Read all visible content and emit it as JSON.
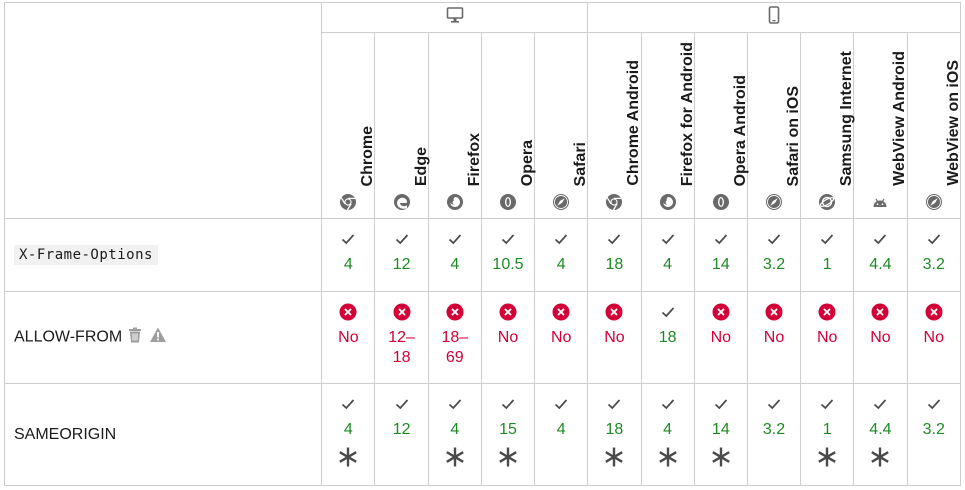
{
  "platforms": {
    "desktop": {
      "icon": "desktop-icon"
    },
    "mobile": {
      "icon": "mobile-icon"
    }
  },
  "browsers": [
    {
      "name": "Chrome",
      "icon": "chrome-icon"
    },
    {
      "name": "Edge",
      "icon": "edge-icon"
    },
    {
      "name": "Firefox",
      "icon": "firefox-icon"
    },
    {
      "name": "Opera",
      "icon": "opera-icon"
    },
    {
      "name": "Safari",
      "icon": "safari-icon"
    },
    {
      "name": "Chrome Android",
      "icon": "chrome-icon"
    },
    {
      "name": "Firefox for Android",
      "icon": "firefox-icon"
    },
    {
      "name": "Opera Android",
      "icon": "opera-icon"
    },
    {
      "name": "Safari on iOS",
      "icon": "safari-icon"
    },
    {
      "name": "Samsung Internet",
      "icon": "samsung-internet-icon"
    },
    {
      "name": "WebView Android",
      "icon": "android-icon"
    },
    {
      "name": "WebView on iOS",
      "icon": "safari-icon"
    }
  ],
  "rows": [
    {
      "feature": "X-Frame-Options",
      "cells": [
        {
          "support": "yes",
          "version": "4"
        },
        {
          "support": "yes",
          "version": "12"
        },
        {
          "support": "yes",
          "version": "4"
        },
        {
          "support": "yes",
          "version": "10.5"
        },
        {
          "support": "yes",
          "version": "4"
        },
        {
          "support": "yes",
          "version": "18"
        },
        {
          "support": "yes",
          "version": "4"
        },
        {
          "support": "yes",
          "version": "14"
        },
        {
          "support": "yes",
          "version": "3.2"
        },
        {
          "support": "yes",
          "version": "1"
        },
        {
          "support": "yes",
          "version": "4.4"
        },
        {
          "support": "yes",
          "version": "3.2"
        }
      ]
    },
    {
      "feature": "ALLOW-FROM",
      "feature_icons": [
        "trash-icon",
        "warning-icon"
      ],
      "cells": [
        {
          "support": "no",
          "version": "No"
        },
        {
          "support": "no",
          "version": "12–\n18"
        },
        {
          "support": "no",
          "version": "18–\n69"
        },
        {
          "support": "no",
          "version": "No"
        },
        {
          "support": "no",
          "version": "No"
        },
        {
          "support": "no",
          "version": "No"
        },
        {
          "support": "yes",
          "version": "18"
        },
        {
          "support": "no",
          "version": "No"
        },
        {
          "support": "no",
          "version": "No"
        },
        {
          "support": "no",
          "version": "No"
        },
        {
          "support": "no",
          "version": "No"
        },
        {
          "support": "no",
          "version": "No"
        }
      ]
    },
    {
      "feature": "SAMEORIGIN",
      "cells": [
        {
          "support": "yes",
          "version": "4",
          "note": true
        },
        {
          "support": "yes",
          "version": "12",
          "note": false
        },
        {
          "support": "yes",
          "version": "4",
          "note": true
        },
        {
          "support": "yes",
          "version": "15",
          "note": true
        },
        {
          "support": "yes",
          "version": "4",
          "note": false
        },
        {
          "support": "yes",
          "version": "18",
          "note": true
        },
        {
          "support": "yes",
          "version": "4",
          "note": true
        },
        {
          "support": "yes",
          "version": "14",
          "note": true
        },
        {
          "support": "yes",
          "version": "3.2",
          "note": false
        },
        {
          "support": "yes",
          "version": "1",
          "note": true
        },
        {
          "support": "yes",
          "version": "4.4",
          "note": true
        },
        {
          "support": "yes",
          "version": "3.2",
          "note": false
        }
      ]
    }
  ],
  "colors": {
    "yes": "#1e8a23",
    "no": "#d30038",
    "grid": "#cdcdcd",
    "icon": "#696969"
  }
}
